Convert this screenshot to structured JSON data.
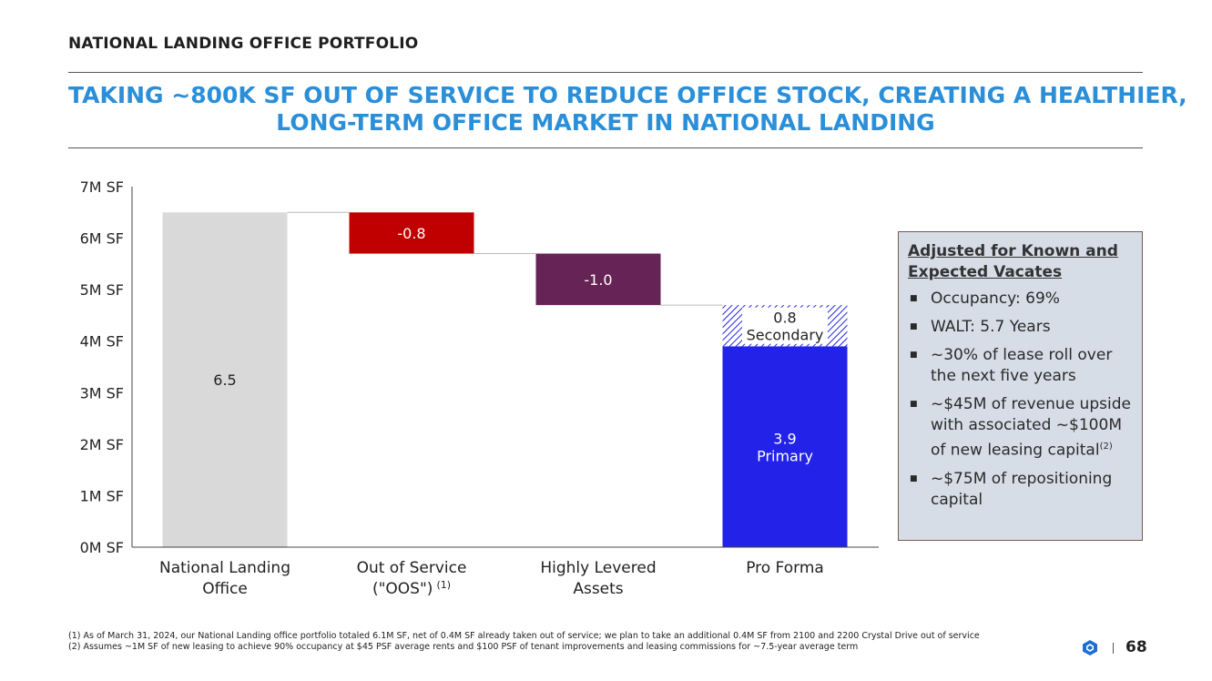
{
  "header": {
    "section_title": "NATIONAL LANDING OFFICE PORTFOLIO",
    "headline_line1": "TAKING ~800K SF OUT OF SERVICE TO REDUCE OFFICE STOCK, CREATING A HEALTHIER,",
    "headline_line2": "LONG-TERM OFFICE MARKET IN NATIONAL LANDING"
  },
  "colors": {
    "headline": "#2a8fd8",
    "national_landing_bar": "#d9d9d9",
    "oos_bar": "#c00000",
    "levered_bar": "#662456",
    "primary_bar": "#2222e8",
    "secondary_hatch": "#2222e8"
  },
  "chart_data": {
    "type": "bar",
    "subtype": "waterfall",
    "y_axis": {
      "min": 0,
      "max": 7,
      "tick_labels": [
        "0M SF",
        "1M SF",
        "2M SF",
        "3M SF",
        "4M SF",
        "5M SF",
        "6M SF",
        "7M SF"
      ]
    },
    "categories": [
      {
        "line1": "National Landing",
        "line2": "Office",
        "sup": ""
      },
      {
        "line1": "Out of Service",
        "line2": "(\"OOS\")",
        "sup": "(1)"
      },
      {
        "line1": "Highly Levered",
        "line2": "Assets",
        "sup": ""
      },
      {
        "line1": "Pro Forma",
        "line2": "",
        "sup": ""
      }
    ],
    "bars": [
      {
        "name": "national-landing-office",
        "start": 0,
        "end": 6.5,
        "label": "6.5",
        "color": "#d9d9d9",
        "label_color": "#222222"
      },
      {
        "name": "out-of-service",
        "start": 5.7,
        "end": 6.5,
        "label": "-0.8",
        "color": "#c00000",
        "label_color": "#ffffff"
      },
      {
        "name": "highly-levered-assets",
        "start": 4.7,
        "end": 5.7,
        "label": "-1.0",
        "color": "#662456",
        "label_color": "#ffffff"
      },
      {
        "name": "pro-forma-primary",
        "start": 0,
        "end": 3.9,
        "label": "3.9",
        "label2": "Primary",
        "color": "#2222e8",
        "label_color": "#ffffff"
      },
      {
        "name": "pro-forma-secondary",
        "start": 3.9,
        "end": 4.7,
        "label": "0.8",
        "label2": "Secondary",
        "color": "hatch",
        "label_color": "#222222"
      }
    ]
  },
  "callout": {
    "title_line1": "Adjusted for Known and",
    "title_line2": "Expected Vacates",
    "items": [
      {
        "text": "Occupancy: 69%",
        "sup": ""
      },
      {
        "text": "WALT: 5.7 Years",
        "sup": ""
      },
      {
        "text": "~30% of lease roll over the next five years",
        "sup": ""
      },
      {
        "text": "~$45M of revenue upside with associated ~$100M of new leasing capital",
        "sup": "(2)"
      },
      {
        "text": "~$75M of repositioning capital",
        "sup": ""
      }
    ]
  },
  "footnotes": {
    "note1": "(1) As of March 31, 2024, our National Landing office portfolio totaled 6.1M SF, net of 0.4M SF already taken out of service; we plan to take an additional 0.4M SF from 2100 and 2200 Crystal Drive out of service",
    "note2": "(2) Assumes ~1M SF of new leasing to achieve 90% occupancy at $45 PSF average rents and $100 PSF of tenant improvements and leasing commissions for ~7.5-year average term"
  },
  "page_number": "68"
}
